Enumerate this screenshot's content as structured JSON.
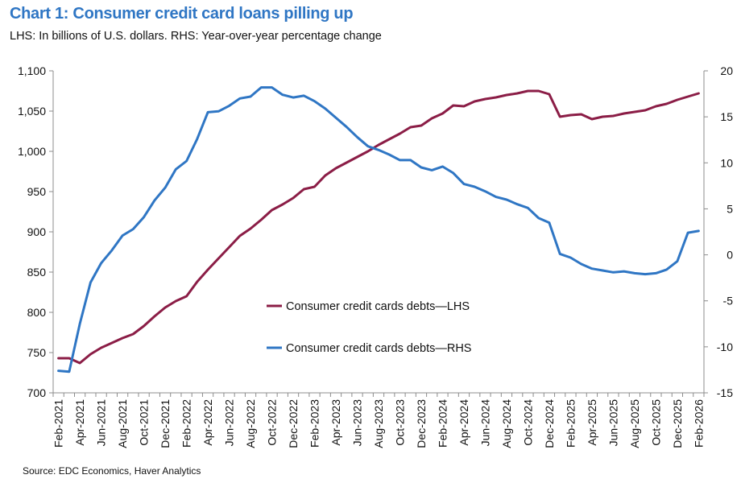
{
  "title": "Chart 1: Consumer credit card loans pilling up",
  "subtitle": "LHS: In billions of U.S. dollars. RHS: Year-over-year percentage change",
  "source": "Source: EDC Economics, Haver Analytics",
  "colors": {
    "lhs": "#8b1d46",
    "rhs": "#2f76c4",
    "axis": "#8c8c8c"
  },
  "chart_data": {
    "type": "line",
    "x": [
      "Feb-2021",
      "Mar-2021",
      "Apr-2021",
      "May-2021",
      "Jun-2021",
      "Jul-2021",
      "Aug-2021",
      "Sep-2021",
      "Oct-2021",
      "Nov-2021",
      "Dec-2021",
      "Jan-2022",
      "Feb-2022",
      "Mar-2022",
      "Apr-2022",
      "May-2022",
      "Jun-2022",
      "Jul-2022",
      "Aug-2022",
      "Sep-2022",
      "Oct-2022",
      "Nov-2022",
      "Dec-2022",
      "Jan-2023",
      "Feb-2023",
      "Mar-2023",
      "Apr-2023",
      "May-2023",
      "Jun-2023",
      "Jul-2023",
      "Aug-2023",
      "Sep-2023",
      "Oct-2023",
      "Nov-2023",
      "Dec-2023",
      "Jan-2024",
      "Feb-2024",
      "Mar-2024",
      "Apr-2024",
      "May-2024",
      "Jun-2024",
      "Jul-2024",
      "Aug-2024",
      "Sep-2024",
      "Oct-2024",
      "Nov-2024",
      "Dec-2024",
      "Jan-2025",
      "Feb-2025",
      "Mar-2025",
      "Apr-2025",
      "May-2025",
      "Jun-2025",
      "Jul-2025",
      "Aug-2025",
      "Sep-2025",
      "Oct-2025",
      "Nov-2025",
      "Dec-2025",
      "Jan-2026",
      "Feb-2026"
    ],
    "xtick_labels": [
      "Feb-2021",
      "Apr-2021",
      "Jun-2021",
      "Aug-2021",
      "Oct-2021",
      "Dec-2021",
      "Feb-2022",
      "Apr-2022",
      "Jun-2022",
      "Aug-2022",
      "Oct-2022",
      "Dec-2022",
      "Feb-2023",
      "Apr-2023",
      "Jun-2023",
      "Aug-2023",
      "Oct-2023",
      "Dec-2023",
      "Feb-2024",
      "Apr-2024",
      "Jun-2024",
      "Aug-2024",
      "Oct-2024",
      "Dec-2024",
      "Feb-2025",
      "Apr-2025",
      "Jun-2025",
      "Aug-2025",
      "Oct-2025",
      "Dec-2025",
      "Feb-2026"
    ],
    "y_left": {
      "min": 700,
      "max": 1100,
      "step": 50,
      "ticks": [
        "700",
        "750",
        "800",
        "850",
        "900",
        "950",
        "1,000",
        "1,050",
        "1,100"
      ]
    },
    "y_right": {
      "min": -15,
      "max": 20,
      "step": 5,
      "ticks": [
        "-15",
        "-10",
        "-5",
        "0",
        "5",
        "10",
        "15",
        "20"
      ]
    },
    "grid": false,
    "legend_position": "center",
    "series": [
      {
        "name": "Consumer credit cards debts—LHS",
        "axis": "left",
        "color": "#8b1d46",
        "values": [
          743,
          743,
          737,
          748,
          756,
          762,
          768,
          773,
          783,
          795,
          806,
          814,
          820,
          838,
          853,
          867,
          881,
          895,
          904,
          915,
          927,
          934,
          942,
          953,
          956,
          970,
          979,
          986,
          993,
          1000,
          1008,
          1015,
          1022,
          1030,
          1032,
          1041,
          1047,
          1057,
          1056,
          1062,
          1065,
          1067,
          1070,
          1072,
          1075,
          1075,
          1071,
          1043,
          1045,
          1046,
          1040,
          1043,
          1044,
          1047,
          1049,
          1051,
          1056,
          1059,
          1064,
          1068,
          1072
        ]
      },
      {
        "name": "Consumer credit cards debts—RHS",
        "axis": "right",
        "color": "#2f76c4",
        "values": [
          -12.6,
          -12.7,
          -7.5,
          -3.0,
          -0.9,
          0.5,
          2.1,
          2.8,
          4.1,
          5.9,
          7.3,
          9.3,
          10.2,
          12.6,
          15.5,
          15.6,
          16.2,
          17.0,
          17.2,
          18.2,
          18.2,
          17.4,
          17.1,
          17.3,
          16.7,
          15.9,
          14.9,
          13.9,
          12.8,
          11.8,
          11.4,
          10.9,
          10.3,
          10.3,
          9.5,
          9.2,
          9.6,
          8.9,
          7.7,
          7.4,
          6.9,
          6.3,
          6.0,
          5.5,
          5.1,
          4.0,
          3.5,
          0.1,
          -0.3,
          -1.0,
          -1.5,
          -1.7,
          -1.9,
          -1.8,
          -2.0,
          -2.1,
          -2.0,
          -1.6,
          -0.7,
          2.4,
          2.6
        ]
      }
    ]
  }
}
